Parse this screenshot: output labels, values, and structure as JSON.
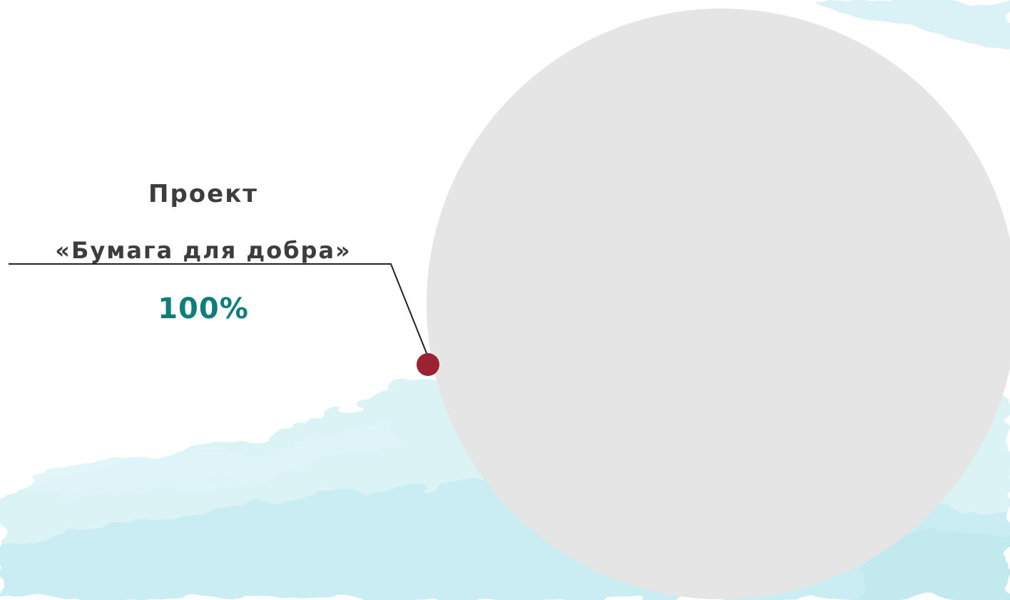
{
  "chart_data": {
    "type": "pie",
    "categories": [
      "Проект «Бумага для добра»"
    ],
    "values": [
      100
    ],
    "slices": [
      {
        "label_line1": "Проект",
        "label_line2": "«Бумага для добра»",
        "value": 100,
        "value_label": "100%",
        "color": "#e5e5e5"
      }
    ],
    "legend": "none",
    "grid": false
  },
  "colors": {
    "slice_fill": "#e5e5e5",
    "marker": "#9b2230",
    "leader_line": "#222222",
    "value_text": "#0f7d7c",
    "label_text": "#3d3d3d",
    "watercolor": "#cdeff3"
  }
}
